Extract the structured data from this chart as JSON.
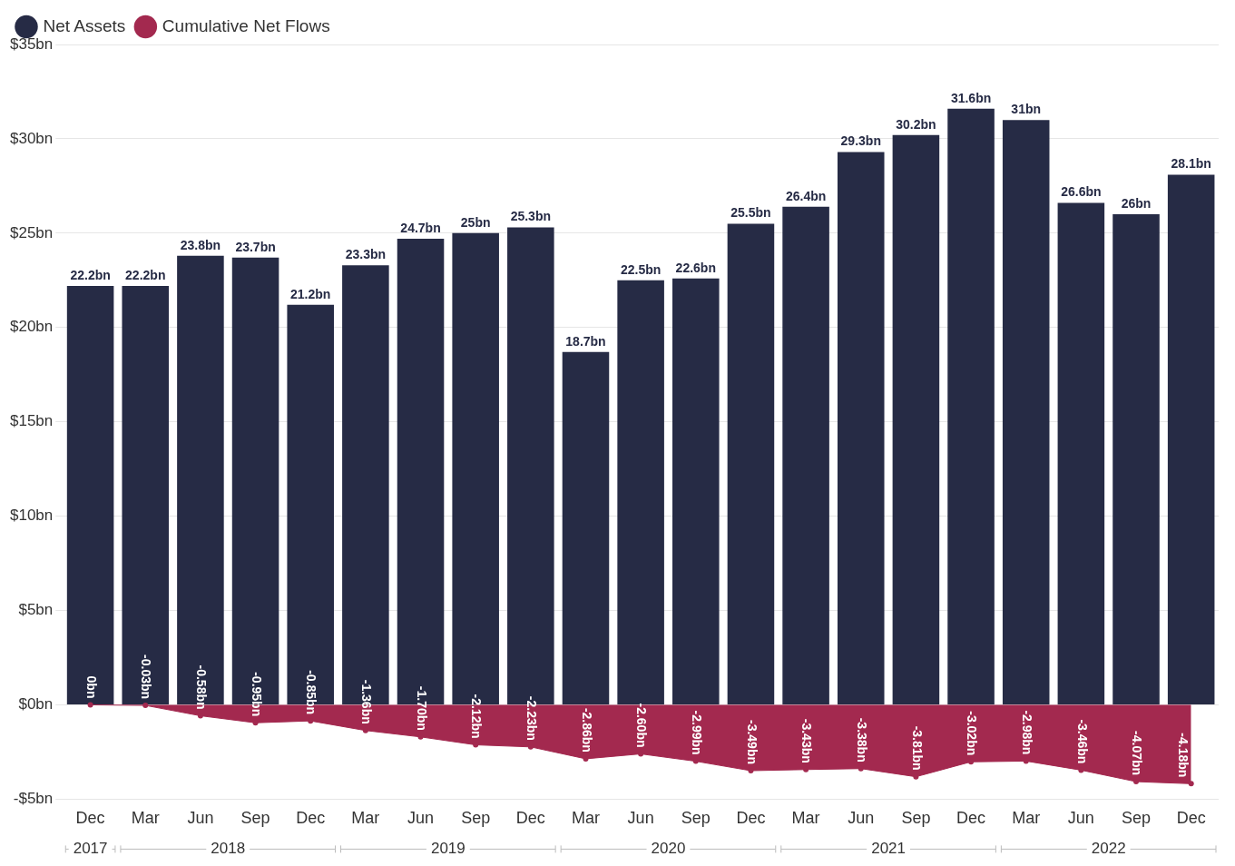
{
  "chart_data": {
    "type": "bar",
    "categories": [
      "Dec",
      "Mar",
      "Jun",
      "Sep",
      "Dec",
      "Mar",
      "Jun",
      "Sep",
      "Dec",
      "Mar",
      "Jun",
      "Sep",
      "Dec",
      "Mar",
      "Jun",
      "Sep",
      "Dec",
      "Mar",
      "Jun",
      "Sep",
      "Dec"
    ],
    "series": [
      {
        "name": "Net Assets",
        "color": "#262b45",
        "values": [
          22.2,
          22.2,
          23.8,
          23.7,
          21.2,
          23.3,
          24.7,
          25,
          25.3,
          18.7,
          22.5,
          22.6,
          25.5,
          26.4,
          29.3,
          30.2,
          31.6,
          31,
          26.6,
          26,
          28.1
        ],
        "value_labels": [
          "22.2bn",
          "22.2bn",
          "23.8bn",
          "23.7bn",
          "21.2bn",
          "23.3bn",
          "24.7bn",
          "25bn",
          "25.3bn",
          "18.7bn",
          "22.5bn",
          "22.6bn",
          "25.5bn",
          "26.4bn",
          "29.3bn",
          "30.2bn",
          "31.6bn",
          "31bn",
          "26.6bn",
          "26bn",
          "28.1bn"
        ]
      },
      {
        "name": "Cumulative Net Flows",
        "type": "area",
        "color": "#a3294f",
        "values": [
          0,
          -0.03,
          -0.58,
          -0.95,
          -0.85,
          -1.36,
          -1.7,
          -2.12,
          -2.23,
          -2.86,
          -2.6,
          -2.99,
          -3.49,
          -3.43,
          -3.38,
          -3.81,
          -3.02,
          -2.98,
          -3.46,
          -4.07,
          -4.18
        ],
        "value_labels": [
          "0bn",
          "-0.03bn",
          "-0.58bn",
          "-0.95bn",
          "-0.85bn",
          "-1.36bn",
          "-1.70bn",
          "-2.12bn",
          "-2.23bn",
          "-2.86bn",
          "-2.60bn",
          "-2.99bn",
          "-3.49bn",
          "-3.43bn",
          "-3.38bn",
          "-3.81bn",
          "-3.02bn",
          "-2.98bn",
          "-3.46bn",
          "-4.07bn",
          "-4.18bn"
        ]
      }
    ],
    "ylim": [
      -5,
      35
    ],
    "yticks": [
      {
        "value": -5,
        "label": "-$5bn"
      },
      {
        "value": 0,
        "label": "$0bn"
      },
      {
        "value": 5,
        "label": "$5bn"
      },
      {
        "value": 10,
        "label": "$10bn"
      },
      {
        "value": 15,
        "label": "$15bn"
      },
      {
        "value": 20,
        "label": "$20bn"
      },
      {
        "value": 25,
        "label": "$25bn"
      },
      {
        "value": 30,
        "label": "$30bn"
      },
      {
        "value": 35,
        "label": "$35bn"
      }
    ],
    "annotations": [
      "2017",
      "2018",
      "2019",
      "2020",
      "2021",
      "2022"
    ],
    "grid": "y",
    "legend": "top left",
    "marker": "circle"
  }
}
